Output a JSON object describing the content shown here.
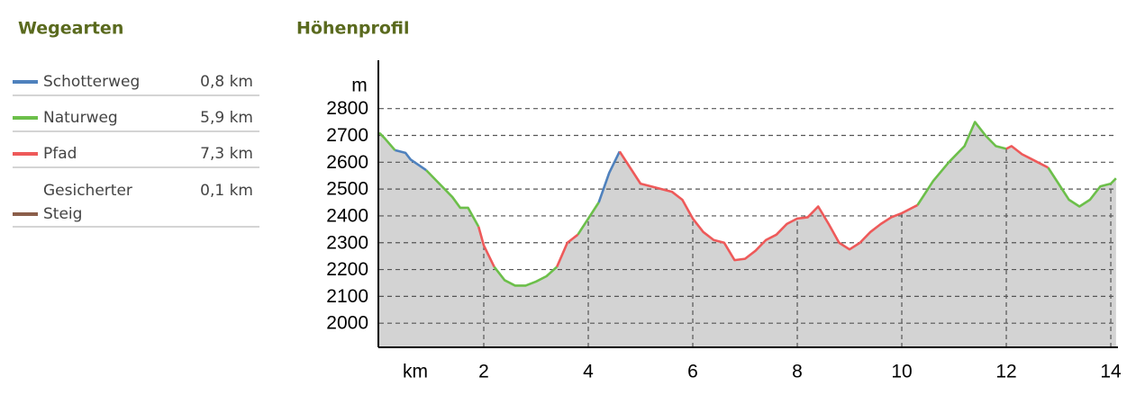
{
  "chart_data": {
    "type": "line",
    "legend_title": "Wegearten",
    "title": "Höhenprofil",
    "x_label": "km",
    "y_label": "m",
    "xlim": [
      0,
      14.12
    ],
    "xticks": [
      2,
      4,
      6,
      8,
      10,
      12,
      14
    ],
    "ylim": [
      1910,
      2980
    ],
    "yticks": [
      2000,
      2100,
      2200,
      2300,
      2400,
      2500,
      2600,
      2700,
      2800
    ],
    "grid": true,
    "area_color": "#d3d3d3",
    "x": [
      0,
      0.1,
      0.3,
      0.5,
      0.6,
      0.9,
      1.2,
      1.4,
      1.55,
      1.7,
      1.9,
      2.0,
      2.2,
      2.4,
      2.6,
      2.8,
      3.0,
      3.2,
      3.4,
      3.6,
      3.8,
      4.0,
      4.2,
      4.4,
      4.6,
      4.8,
      5.0,
      5.3,
      5.6,
      5.8,
      6.0,
      6.2,
      6.4,
      6.6,
      6.8,
      7.0,
      7.2,
      7.4,
      7.6,
      7.8,
      8.0,
      8.2,
      8.4,
      8.6,
      8.8,
      9.0,
      9.2,
      9.4,
      9.6,
      9.8,
      10.0,
      10.3,
      10.6,
      10.9,
      11.2,
      11.4,
      11.6,
      11.8,
      12.0,
      12.1,
      12.3,
      12.6,
      12.8,
      13.0,
      13.2,
      13.4,
      13.6,
      13.8,
      14.0,
      14.1
    ],
    "series": [
      {
        "name": "Schotterweg",
        "length": "0,8 km",
        "color": "#4f81bd",
        "values": [
          null,
          null,
          2645,
          2635,
          2610,
          2570,
          null,
          null,
          null,
          null,
          null,
          null,
          null,
          null,
          null,
          null,
          null,
          null,
          null,
          null,
          null,
          null,
          2450,
          2560,
          2640,
          null,
          null,
          null,
          null,
          null,
          null,
          null,
          null,
          null,
          null,
          null,
          null,
          null,
          null,
          null,
          null,
          null,
          null,
          null,
          null,
          null,
          null,
          null,
          null,
          null,
          null,
          null,
          null,
          null,
          null,
          null,
          null,
          null,
          null,
          null,
          null,
          null,
          null,
          null,
          null,
          null,
          null,
          null,
          null,
          null
        ]
      },
      {
        "name": "Naturweg",
        "length": "5,9 km",
        "color": "#6cbf4a",
        "values": [
          2710,
          2690,
          2645,
          null,
          null,
          2570,
          2510,
          2470,
          2430,
          2430,
          2360,
          null,
          2210,
          2160,
          2140,
          2140,
          2155,
          2175,
          2210,
          null,
          2330,
          2390,
          2450,
          null,
          null,
          null,
          null,
          null,
          null,
          null,
          null,
          null,
          null,
          null,
          null,
          null,
          null,
          null,
          null,
          null,
          null,
          null,
          null,
          null,
          null,
          null,
          null,
          null,
          null,
          null,
          null,
          2440,
          2530,
          2600,
          2660,
          2750,
          2700,
          2660,
          2650,
          null,
          null,
          null,
          2580,
          2520,
          2460,
          2435,
          2460,
          2510,
          2520,
          2540
        ]
      },
      {
        "name": "Pfad",
        "length": "7,3 km",
        "color": "#ee5a5a",
        "values": [
          null,
          null,
          null,
          null,
          null,
          null,
          null,
          null,
          null,
          null,
          2360,
          2290,
          2210,
          null,
          null,
          null,
          null,
          null,
          2210,
          2300,
          2330,
          null,
          null,
          null,
          2640,
          2580,
          2520,
          2505,
          2490,
          2460,
          2390,
          2340,
          2310,
          2300,
          2235,
          2240,
          2270,
          2310,
          2330,
          2370,
          2390,
          2395,
          2435,
          2370,
          2300,
          2275,
          2300,
          2340,
          2370,
          2395,
          2410,
          2440,
          null,
          null,
          null,
          null,
          null,
          null,
          2650,
          2660,
          2630,
          2600,
          2580,
          null,
          null,
          null,
          null,
          null,
          null,
          null
        ]
      },
      {
        "name": "Gesicherter Steig",
        "length": "0,1 km",
        "color": "#8b5e4a"
      }
    ]
  }
}
